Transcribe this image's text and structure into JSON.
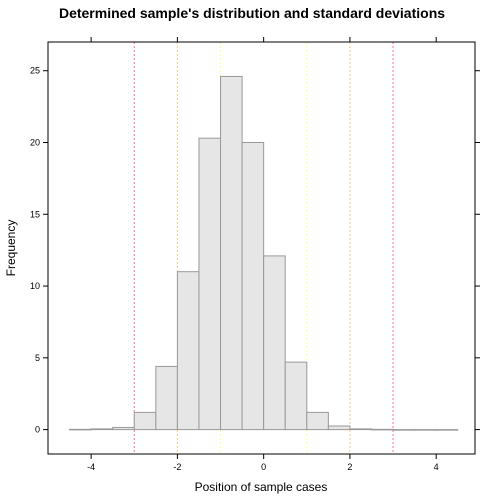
{
  "chart_data": {
    "type": "bar",
    "title": "Determined sample's distribution and standard deviations",
    "xlabel": "Position of sample cases",
    "ylabel": "Frequency",
    "xlim": [
      -5.0,
      4.9
    ],
    "ylim": [
      -1.7,
      27.0
    ],
    "xticks": [
      -4,
      -2,
      0,
      2,
      4
    ],
    "yticks": [
      0,
      5,
      10,
      15,
      20,
      25
    ],
    "bin_edges": [
      -4.5,
      -4.0,
      -3.5,
      -3.0,
      -2.5,
      -2.0,
      -1.5,
      -1.0,
      -0.5,
      0.0,
      0.5,
      1.0,
      1.5,
      2.0,
      2.5,
      3.0,
      3.5,
      4.0,
      4.5
    ],
    "values": [
      0.02,
      0.05,
      0.15,
      1.2,
      4.4,
      11.0,
      20.3,
      24.6,
      20.0,
      12.1,
      4.7,
      1.2,
      0.25,
      0.05,
      0.02,
      0.0,
      0.0,
      0.0
    ],
    "sd_lines": [
      {
        "x": -3,
        "color": "#ff6f8f"
      },
      {
        "x": -2,
        "color": "#ffc48a"
      },
      {
        "x": -1,
        "color": "#ffff7a"
      },
      {
        "x": 1,
        "color": "#ffff7a"
      },
      {
        "x": 2,
        "color": "#ffc48a"
      },
      {
        "x": 3,
        "color": "#ff6f8f"
      }
    ],
    "colors": {
      "bar_fill": "#e6e6e6",
      "bar_stroke": "#999999",
      "frame": "#000000"
    }
  }
}
